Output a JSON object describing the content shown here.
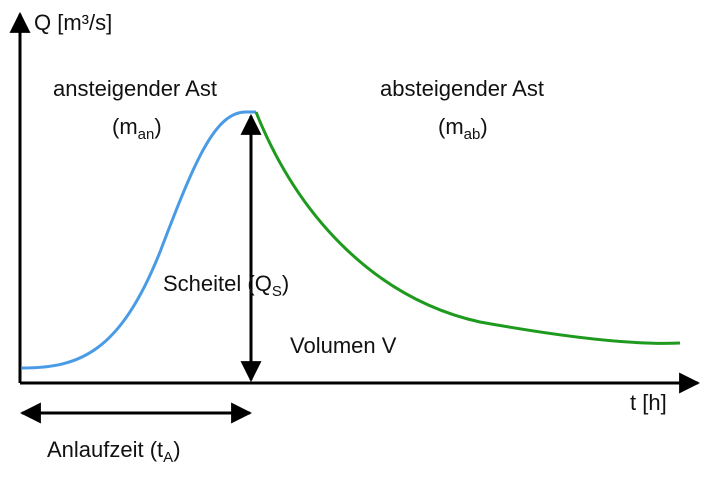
{
  "axes": {
    "y_label": "Q [m³/s]",
    "x_label": "t [h]"
  },
  "rising_limb": {
    "label": "ansteigender Ast",
    "symbol": "(m",
    "subscript": "an",
    "close": ")"
  },
  "falling_limb": {
    "label": "absteigender Ast",
    "symbol": "(m",
    "subscript": "ab",
    "close": ")"
  },
  "peak": {
    "label": "Scheitel (Q",
    "subscript": "S",
    "close": ")"
  },
  "volume": {
    "label": "Volumen V"
  },
  "rise_time": {
    "label": "Anlaufzeit (t",
    "subscript": "A",
    "close": ")"
  }
}
